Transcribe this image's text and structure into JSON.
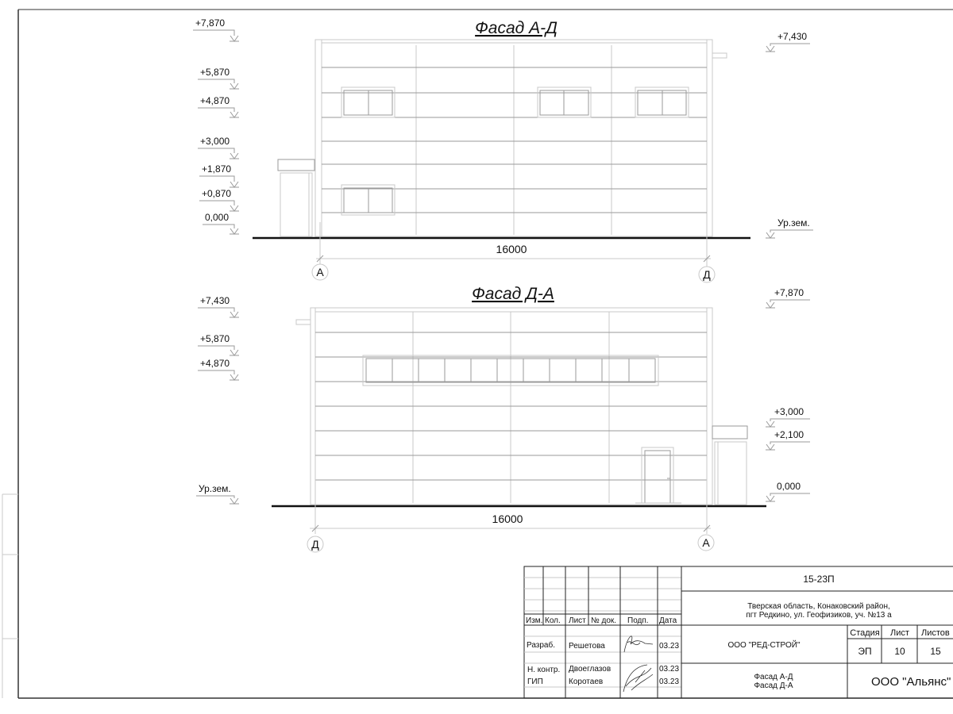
{
  "facade1": {
    "title": "Фасад А-Д",
    "levels_left": [
      "+7,870",
      "+5,870",
      "+4,870",
      "+3,000",
      "+1,870",
      "+0,870",
      "0,000"
    ],
    "levels_right": [
      "+7,430",
      "Ур.зем."
    ],
    "dimension": "16000",
    "axis_left": "А",
    "axis_right": "Д"
  },
  "facade2": {
    "title": "Фасад Д-А",
    "levels_left": [
      "+7,430",
      "+5,870",
      "+4,870",
      "Ур.зем."
    ],
    "levels_right": [
      "+7,870",
      "+3,000",
      "+2,100",
      "0,000"
    ],
    "dimension": "16000",
    "axis_left": "Д",
    "axis_right": "А"
  },
  "title_block": {
    "project_code": "15-23П",
    "address_line1": "Тверская область, Конаковский район,",
    "address_line2": "пгт Редкино, ул. Геофизиков, уч. №13 а",
    "headers": [
      "Изм.",
      "Кол.",
      "Лист",
      "№ док.",
      "Подп.",
      "Дата"
    ],
    "rows": [
      {
        "role": "Разраб.",
        "name": "Решетова",
        "date": "03.23"
      },
      {
        "role": "Н. контр.",
        "name": "Двоеглазов",
        "date": "03.23"
      },
      {
        "role": "ГИП",
        "name": "Коротаев",
        "date": "03.23"
      }
    ],
    "designer_org": "ООО \"РЕД-СТРОЙ\"",
    "sheet_names_line1": "Фасад А-Д",
    "sheet_names_line2": "Фасад Д-А",
    "stage_label": "Стадия",
    "sheet_label": "Лист",
    "sheets_label": "Листов",
    "stage": "ЭП",
    "sheet": "10",
    "sheets": "15",
    "client_org": "ООО \"Альянс\""
  }
}
